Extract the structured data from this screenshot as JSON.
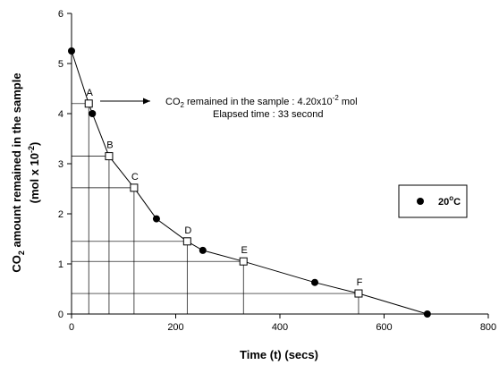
{
  "chart_data": {
    "type": "line",
    "xlabel": "Time (t) (secs)",
    "ylabel": {
      "pre": "CO",
      "sub": "2",
      "line1": " amount remained in the sample",
      "line2_pre": "(mol x 10",
      "line2_sup": "-2",
      "line2_post": ")"
    },
    "xlim": [
      0,
      800
    ],
    "ylim": [
      0,
      6
    ],
    "x_ticks": [
      "0",
      "200",
      "400",
      "600",
      "800"
    ],
    "y_ticks": [
      "0",
      "1",
      "2",
      "3",
      "4",
      "5",
      "6"
    ],
    "grid": false,
    "legend": {
      "position": "right",
      "entries": [
        {
          "marker": "filled-circle",
          "text_pre": "20",
          "text_sup": "o",
          "text_post": "C"
        }
      ]
    },
    "series": [
      {
        "name": "20°C",
        "marker": "filled-circle",
        "points": [
          {
            "x": 0,
            "y": 5.25
          },
          {
            "x": 40,
            "y": 4.0
          },
          {
            "x": 163,
            "y": 1.9
          },
          {
            "x": 252,
            "y": 1.27
          },
          {
            "x": 467,
            "y": 0.63
          },
          {
            "x": 683,
            "y": 0.0
          }
        ]
      },
      {
        "name": "",
        "marker": "open-square",
        "points": [
          {
            "label": "A",
            "x": 33,
            "y": 4.2
          },
          {
            "label": "B",
            "x": 72,
            "y": 3.15
          },
          {
            "label": "C",
            "x": 120,
            "y": 2.52
          },
          {
            "label": "D",
            "x": 222,
            "y": 1.45
          },
          {
            "label": "E",
            "x": 330,
            "y": 1.05
          },
          {
            "label": "F",
            "x": 551,
            "y": 0.41
          }
        ]
      }
    ],
    "curve": [
      {
        "x": 0,
        "y": 5.25
      },
      {
        "x": 33,
        "y": 4.2
      },
      {
        "x": 40,
        "y": 4.0
      },
      {
        "x": 72,
        "y": 3.15
      },
      {
        "x": 120,
        "y": 2.52
      },
      {
        "x": 163,
        "y": 1.9
      },
      {
        "x": 222,
        "y": 1.45
      },
      {
        "x": 252,
        "y": 1.27
      },
      {
        "x": 330,
        "y": 1.05
      },
      {
        "x": 467,
        "y": 0.63
      },
      {
        "x": 551,
        "y": 0.41
      },
      {
        "x": 683,
        "y": 0.0
      }
    ],
    "annotation": {
      "line1_pre": "CO",
      "line1_sub": "2",
      "line1_mid": " remained in the sample : 4.20x10",
      "line1_sup": "-2",
      "line1_post": " mol",
      "line2": "Elapsed time : 33 second"
    }
  }
}
